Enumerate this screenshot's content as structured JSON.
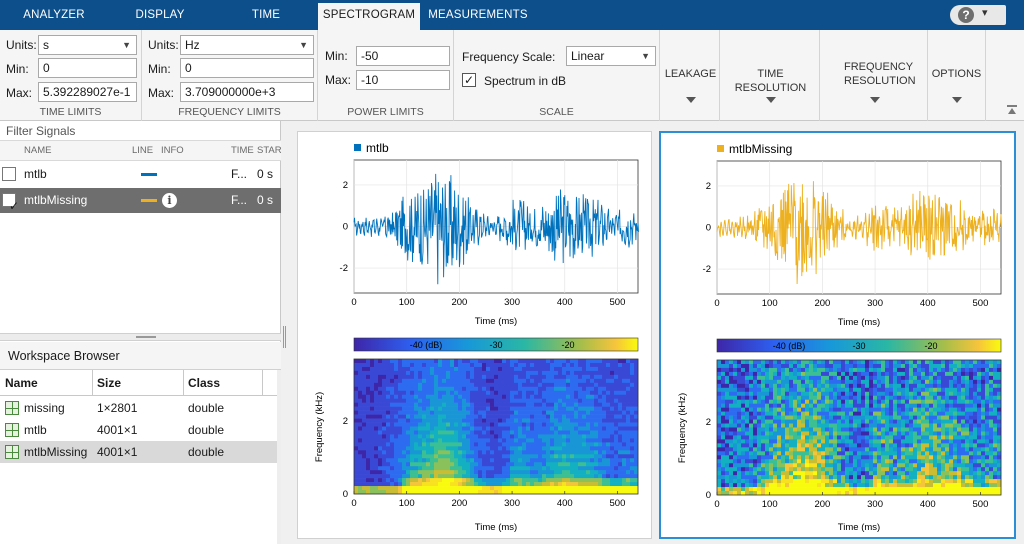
{
  "tabs": [
    {
      "label": "ANALYZER"
    },
    {
      "label": "DISPLAY"
    },
    {
      "label": "TIME"
    },
    {
      "label": "SPECTROGRAM"
    },
    {
      "label": "MEASUREMENTS"
    }
  ],
  "help_icon": "question-icon",
  "toolstrip": {
    "time_limits": {
      "units_label": "Units:",
      "units_value": "s",
      "min_label": "Min:",
      "min_value": "0",
      "max_label": "Max:",
      "max_value": "5.392289027e-1",
      "section_label": "TIME LIMITS"
    },
    "frequency_limits": {
      "units_label": "Units:",
      "units_value": "Hz",
      "min_label": "Min:",
      "min_value": "0",
      "max_label": "Max:",
      "max_value": "3.709000000e+3",
      "section_label": "FREQUENCY LIMITS"
    },
    "power_limits": {
      "min_label": "Min:",
      "min_value": "-50",
      "max_label": "Max:",
      "max_value": "-10",
      "section_label": "POWER LIMITS"
    },
    "scale": {
      "freq_scale_label": "Frequency Scale:",
      "freq_scale_value": "Linear",
      "spectrum_db_label": "Spectrum in dB",
      "spectrum_db_checked": true,
      "section_label": "SCALE"
    },
    "buttons": [
      {
        "label": "LEAKAGE"
      },
      {
        "label": "TIME RESOLUTION"
      },
      {
        "label": "FREQUENCY RESOLUTION"
      },
      {
        "label": "OPTIONS"
      }
    ]
  },
  "signals": {
    "filter_placeholder": "Filter Signals",
    "columns": [
      "NAME",
      "LINE",
      "INFO",
      "TIME",
      "STAR"
    ],
    "rows": [
      {
        "name": "mtlb",
        "checked": false,
        "line_color": "#0072bd",
        "time": "F...",
        "start": "0 s"
      },
      {
        "name": "mtlbMissing",
        "checked": true,
        "line_color": "#edb120",
        "time": "F...",
        "start": "0 s",
        "info_icon": "info-icon"
      }
    ]
  },
  "workspace": {
    "title": "Workspace Browser",
    "columns": [
      "Name",
      "Size",
      "Class"
    ],
    "rows": [
      {
        "name": "missing",
        "size": "1×2801",
        "class": "double"
      },
      {
        "name": "mtlb",
        "size": "4001×1",
        "class": "double"
      },
      {
        "name": "mtlbMissing",
        "size": "4001×1",
        "class": "double",
        "selected": true
      }
    ]
  },
  "plots": [
    {
      "legend": "mtlb",
      "color": "#0072bd",
      "active": false,
      "time_plot": {
        "xlabel": "Time (ms)",
        "xticks": [
          "0",
          "100",
          "200",
          "300",
          "400",
          "500"
        ],
        "yticks": [
          "2",
          "0",
          "-2"
        ],
        "xlim": [
          0,
          539
        ],
        "ylim": [
          -3.2,
          3.2
        ]
      },
      "colorbar": {
        "labels": [
          "-40 (dB)",
          "-30",
          "-20"
        ]
      },
      "spectrogram": {
        "xlabel": "Time (ms)",
        "ylabel": "Frequency (kHz)",
        "xticks": [
          "0",
          "100",
          "200",
          "300",
          "400",
          "500"
        ],
        "yticks": [
          "2",
          "0"
        ]
      }
    },
    {
      "legend": "mtlbMissing",
      "color": "#edb120",
      "active": true,
      "time_plot": {
        "xlabel": "Time (ms)",
        "xticks": [
          "0",
          "100",
          "200",
          "300",
          "400",
          "500"
        ],
        "yticks": [
          "2",
          "0",
          "-2"
        ],
        "xlim": [
          0,
          539
        ],
        "ylim": [
          -3.2,
          3.2
        ]
      },
      "colorbar": {
        "labels": [
          "-40 (dB)",
          "-30",
          "-20"
        ]
      },
      "spectrogram": {
        "xlabel": "Time (ms)",
        "ylabel": "Frequency (kHz)",
        "xticks": [
          "0",
          "100",
          "200",
          "300",
          "400",
          "500"
        ],
        "yticks": [
          "2",
          "0"
        ]
      }
    }
  ]
}
